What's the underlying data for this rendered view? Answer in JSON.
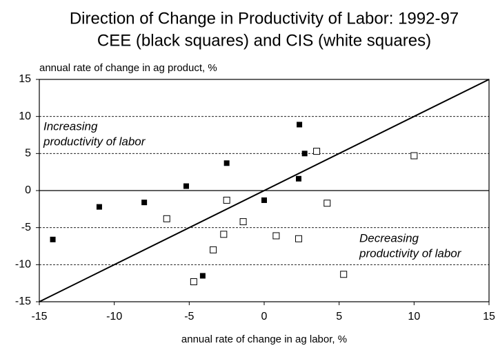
{
  "chart_data": {
    "type": "scatter",
    "title": "Direction of Change in Productivity of Labor: 1992-97",
    "subtitle": "CEE (black squares) and CIS (white squares)",
    "y_label": "annual rate of change in ag product, %",
    "x_label": "annual rate of change in ag labor, %",
    "annotations": [
      [
        "Increasing",
        "productivity of labor"
      ],
      [
        "Decreasing",
        "productivity of labor"
      ]
    ],
    "xlim": [
      -15,
      15
    ],
    "xticks": [
      -15,
      -10,
      -5,
      0,
      5,
      10,
      15
    ],
    "ylim": [
      -15,
      15
    ],
    "yticks": [
      -15,
      -10,
      -5,
      0,
      5,
      10,
      15
    ],
    "grid": true,
    "series": [
      {
        "color": "#000000",
        "marker_fill": "#000000",
        "x": [
          -14.1,
          -11.0,
          -8.0,
          -5.2,
          -2.5,
          0.0,
          2.35,
          2.7,
          2.3,
          -4.1
        ],
        "values": [
          -6.6,
          -2.2,
          -1.6,
          0.6,
          3.7,
          -1.3,
          8.9,
          5.0,
          1.6,
          -11.5
        ]
      },
      {
        "color": "#000000",
        "marker_fill": "#ffffff",
        "x": [
          3.5,
          10.0,
          -2.5,
          4.2,
          -6.5,
          -2.7,
          -3.4,
          -1.4,
          0.8,
          2.3,
          -4.7,
          5.3
        ],
        "values": [
          5.3,
          4.7,
          -1.3,
          -1.7,
          -3.8,
          -5.9,
          -8.0,
          -4.2,
          -6.1,
          -6.5,
          -12.3,
          -11.3
        ]
      }
    ]
  }
}
